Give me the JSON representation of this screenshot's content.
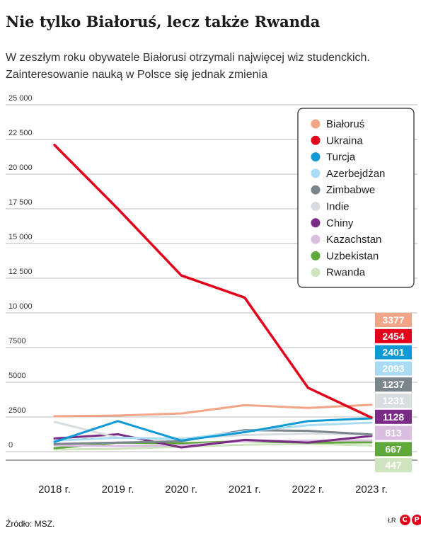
{
  "header": {
    "title": "Nie tylko Białoruś, lecz także Rwanda",
    "subtitle_line1": "W zeszłym roku obywatele Białorusi otrzymali najwięcej wiz studenckich.",
    "subtitle_line2": "Zainteresowanie nauką w Polsce się jednak zmienia"
  },
  "footer": {
    "source": "Źródło: MSZ.",
    "author": "ŁR",
    "logo_text": "CP"
  },
  "chart_data": {
    "type": "line",
    "x": [
      "2018 r.",
      "2019 r.",
      "2020 r.",
      "2021 r.",
      "2022 r.",
      "2023 r."
    ],
    "ylim": [
      0,
      25000
    ],
    "yticks": [
      0,
      2500,
      5000,
      7500,
      10000,
      12500,
      15000,
      17500,
      20000,
      22500,
      25000
    ],
    "ytick_labels": [
      "0",
      "2500",
      "5000",
      "7500",
      "10 000",
      "12 500",
      "15 000",
      "17 500",
      "20 000",
      "22 500",
      "25 000"
    ],
    "grid": "horizontal",
    "legend_position": "top-right",
    "series": [
      {
        "name": "Białoruś",
        "color": "#f2a487",
        "values": [
          2550,
          2600,
          2750,
          3350,
          3150,
          3377
        ],
        "end_label": "3377"
      },
      {
        "name": "Ukraina",
        "color": "#e2001a",
        "values": [
          22100,
          17500,
          12700,
          11100,
          4600,
          2454
        ],
        "end_label": "2454"
      },
      {
        "name": "Turcja",
        "color": "#0f9ad6",
        "values": [
          700,
          2200,
          800,
          1400,
          2200,
          2401
        ],
        "end_label": "2401"
      },
      {
        "name": "Azerbejdżan",
        "color": "#a9dcf3",
        "values": [
          800,
          1000,
          900,
          1450,
          1900,
          2093
        ],
        "end_label": "2093"
      },
      {
        "name": "Zimbabwe",
        "color": "#7b858c",
        "values": [
          550,
          650,
          750,
          1550,
          1500,
          1237
        ],
        "end_label": "1237"
      },
      {
        "name": "Indie",
        "color": "#d8dde0",
        "values": [
          2150,
          1000,
          950,
          1200,
          1300,
          1231
        ],
        "end_label": "1231"
      },
      {
        "name": "Chiny",
        "color": "#7a2b86",
        "values": [
          950,
          1250,
          300,
          850,
          650,
          1128
        ],
        "end_label": "1128"
      },
      {
        "name": "Kazachstan",
        "color": "#d9bedf",
        "values": [
          450,
          400,
          450,
          750,
          800,
          813
        ],
        "end_label": "813"
      },
      {
        "name": "Uzbekistan",
        "color": "#5fa83a",
        "values": [
          250,
          650,
          600,
          750,
          650,
          667
        ],
        "end_label": "667"
      },
      {
        "name": "Rwanda",
        "color": "#cfe5bf",
        "values": [
          150,
          200,
          350,
          500,
          550,
          447
        ],
        "end_label": "447"
      }
    ]
  }
}
